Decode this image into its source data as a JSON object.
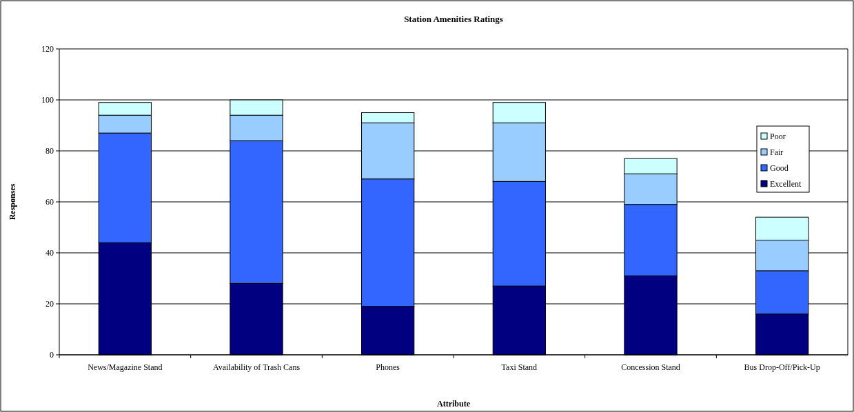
{
  "chart_data": {
    "type": "bar",
    "title": "Station Amenities Ratings",
    "xlabel": "Attribute",
    "ylabel": "Responses",
    "categories": [
      "News/Magazine Stand",
      "Availability of Trash Cans",
      "Phones",
      "Taxi Stand",
      "Concession Stand",
      "Bus Drop-Off/Pick-Up"
    ],
    "stacked": true,
    "ylim": [
      0,
      120
    ],
    "yticks": [
      0,
      20,
      40,
      60,
      80,
      100,
      120
    ],
    "grid": "y",
    "legend": "right",
    "series": [
      {
        "name": "Excellent",
        "color": "#000080",
        "values": [
          44,
          28,
          19,
          27,
          31,
          16
        ]
      },
      {
        "name": "Good",
        "color": "#3366ff",
        "values": [
          43,
          56,
          50,
          41,
          28,
          17
        ]
      },
      {
        "name": "Fair",
        "color": "#99ccff",
        "values": [
          7,
          10,
          22,
          23,
          12,
          12
        ]
      },
      {
        "name": "Poor",
        "color": "#ccffff",
        "values": [
          5,
          6,
          4,
          8,
          6,
          9
        ]
      }
    ]
  }
}
